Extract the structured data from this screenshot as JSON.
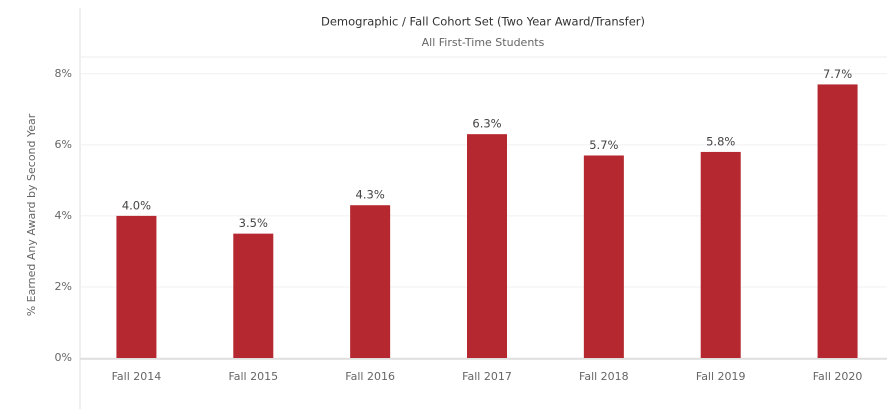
{
  "chart_data": {
    "type": "bar",
    "title": "Demographic / Fall Cohort Set (Two Year Award/Transfer)",
    "subtitle": "All First-Time Students",
    "y_label": "% Earned Any Award by Second Year",
    "categories": [
      "Fall 2014",
      "Fall 2015",
      "Fall 2016",
      "Fall 2017",
      "Fall 2018",
      "Fall 2019",
      "Fall 2020"
    ],
    "values": [
      4.0,
      3.5,
      4.3,
      6.3,
      5.7,
      5.8,
      7.7
    ],
    "value_labels": [
      "4.0%",
      "3.5%",
      "4.3%",
      "6.3%",
      "5.7%",
      "5.8%",
      "7.7%"
    ],
    "color": "#b5282f",
    "ylim": [
      0,
      8.5
    ],
    "yticks": [
      {
        "value": 0,
        "label": "0%"
      },
      {
        "value": 2,
        "label": "2%"
      },
      {
        "value": 4,
        "label": "4%"
      },
      {
        "value": 6,
        "label": "6%"
      },
      {
        "value": 8,
        "label": "8%"
      }
    ],
    "grid": true
  }
}
